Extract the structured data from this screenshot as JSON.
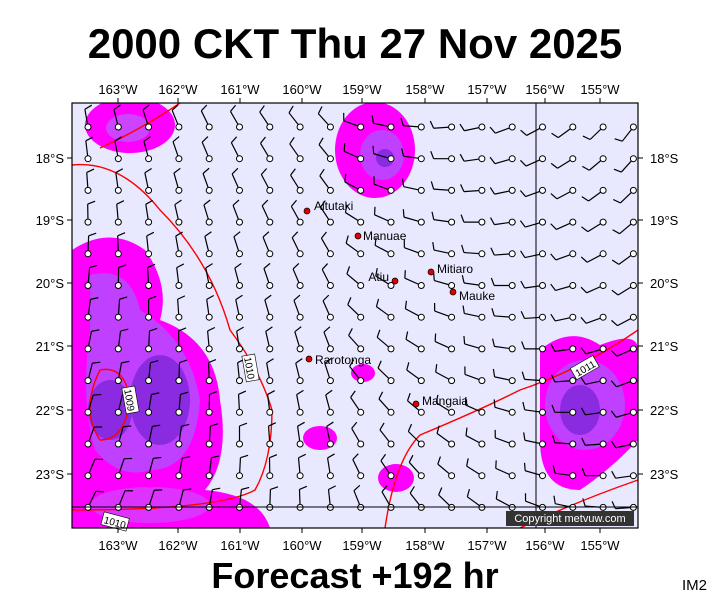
{
  "header": {
    "title": "2000 CKT Thu 27 Nov 2025"
  },
  "longitude_labels": [
    "163°W",
    "162°W",
    "161°W",
    "160°W",
    "159°W",
    "158°W",
    "157°W",
    "156°W",
    "155°W"
  ],
  "latitude_labels": [
    "18°S",
    "19°S",
    "20°S",
    "21°S",
    "22°S",
    "23°S"
  ],
  "places": [
    "Aitutaki",
    "Manuae",
    "Atiu",
    "Mitiaro",
    "Mauke",
    "Rarotonga",
    "Mangaia"
  ],
  "isobar_labels": [
    "1010",
    "1009",
    "1011",
    "1010"
  ],
  "copyright": "Copyright metvuw.com",
  "footer": {
    "title": "Forecast +192 hr",
    "corner": "IM2"
  }
}
